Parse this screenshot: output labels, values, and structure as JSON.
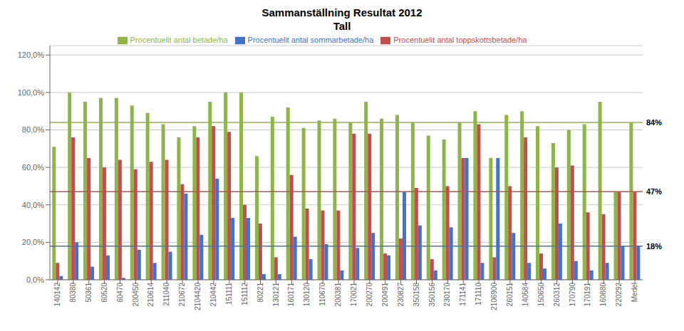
{
  "chart_data": {
    "type": "bar",
    "title": "Sammanställning Resultat 2012",
    "subtitle": "Tall",
    "categories": [
      "140142",
      "80380",
      "50361",
      "60520",
      "60470",
      "200450",
      "210614",
      "211040",
      "210672",
      "2104420",
      "210442",
      "151111",
      "151112",
      "80221",
      "130121",
      "160171",
      "130120",
      "110670",
      "200381",
      "170021",
      "200270",
      "200491",
      "230827",
      "350158",
      "350156",
      "230170",
      "171141",
      "171110",
      "2106900",
      "260151",
      "140584",
      "150650",
      "260312",
      "170790",
      "170191",
      "160880",
      "220292",
      "Medel"
    ],
    "series": [
      {
        "name": "Procentuelit antal betade/ha",
        "color": "#8db54a",
        "values": [
          71,
          100,
          95,
          97,
          97,
          93,
          89,
          83,
          76,
          82,
          95,
          100,
          100,
          66,
          87,
          92,
          81,
          85,
          86,
          84,
          95,
          86,
          88,
          84,
          77,
          75,
          84,
          90,
          65,
          88,
          90,
          82,
          73,
          80,
          83,
          95,
          47,
          84
        ]
      },
      {
        "name": "Procentuelit antal toppskottsbetade/ha",
        "color": "#c0504d",
        "values": [
          9,
          76,
          65,
          60,
          64,
          59,
          63,
          64,
          51,
          76,
          82,
          79,
          40,
          30,
          12,
          56,
          38,
          37,
          37,
          78,
          78,
          14,
          22,
          49,
          11,
          50,
          65,
          83,
          12,
          50,
          76,
          14,
          60,
          61,
          36,
          35,
          47,
          47
        ]
      },
      {
        "name": "Procentuelit antal sommarbetade/ha",
        "color": "#4472c4",
        "values": [
          2,
          20,
          7,
          13,
          1,
          16,
          9,
          15,
          46,
          24,
          54,
          33,
          33,
          3,
          3,
          23,
          11,
          19,
          5,
          17,
          25,
          13,
          47,
          29,
          5,
          28,
          65,
          9,
          65,
          25,
          9,
          6,
          30,
          10,
          5,
          9,
          18,
          18
        ]
      }
    ],
    "annotations": [
      {
        "y": 84,
        "label": "84%",
        "color": "#8db54a"
      },
      {
        "y": 47,
        "label": "47%",
        "color": "#c0504d"
      },
      {
        "y": 18,
        "label": "18%",
        "color": "#4472c4"
      }
    ],
    "ylim": [
      0,
      125
    ],
    "yticks": [
      {
        "value": 0,
        "label": "0,0%"
      },
      {
        "value": 20,
        "label": "20,0%"
      },
      {
        "value": 40,
        "label": "40,0%"
      },
      {
        "value": 60,
        "label": "60,0%"
      },
      {
        "value": 80,
        "label": "80,0%"
      },
      {
        "value": 100,
        "label": "100,0%"
      },
      {
        "value": 120,
        "label": "120,0%"
      }
    ],
    "grid": true,
    "legend": "top"
  }
}
